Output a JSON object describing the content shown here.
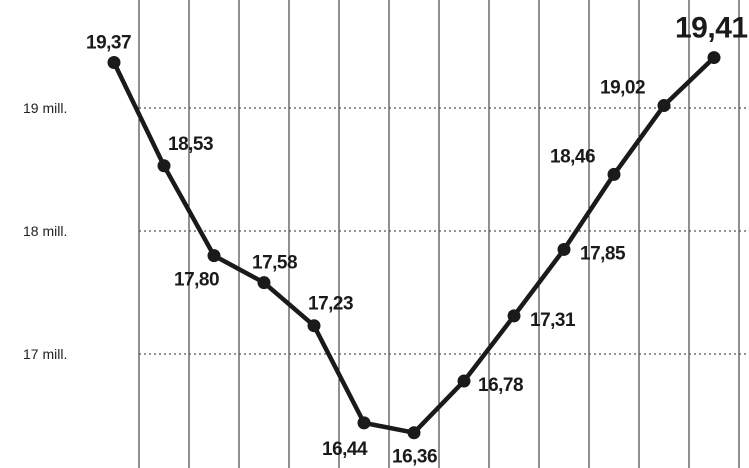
{
  "chart_data": {
    "type": "line",
    "title": "",
    "xlabel": "",
    "ylabel": "",
    "ylim": [
      16.0,
      19.8
    ],
    "grid": true,
    "y_ticks": [
      {
        "value": 19,
        "label": "19 mill."
      },
      {
        "value": 18,
        "label": "18 mill."
      },
      {
        "value": 17,
        "label": "17 mill."
      }
    ],
    "series": [
      {
        "values": [
          19.37,
          18.53,
          17.8,
          17.58,
          17.23,
          16.44,
          16.36,
          16.78,
          17.31,
          17.85,
          18.46,
          19.02,
          19.41
        ],
        "labels": [
          "19,37",
          "18,53",
          "17,80",
          "17,58",
          "17,23",
          "16,44",
          "16,36",
          "16,78",
          "17,31",
          "17,85",
          "18,46",
          "19,02",
          "19,41"
        ]
      }
    ]
  }
}
